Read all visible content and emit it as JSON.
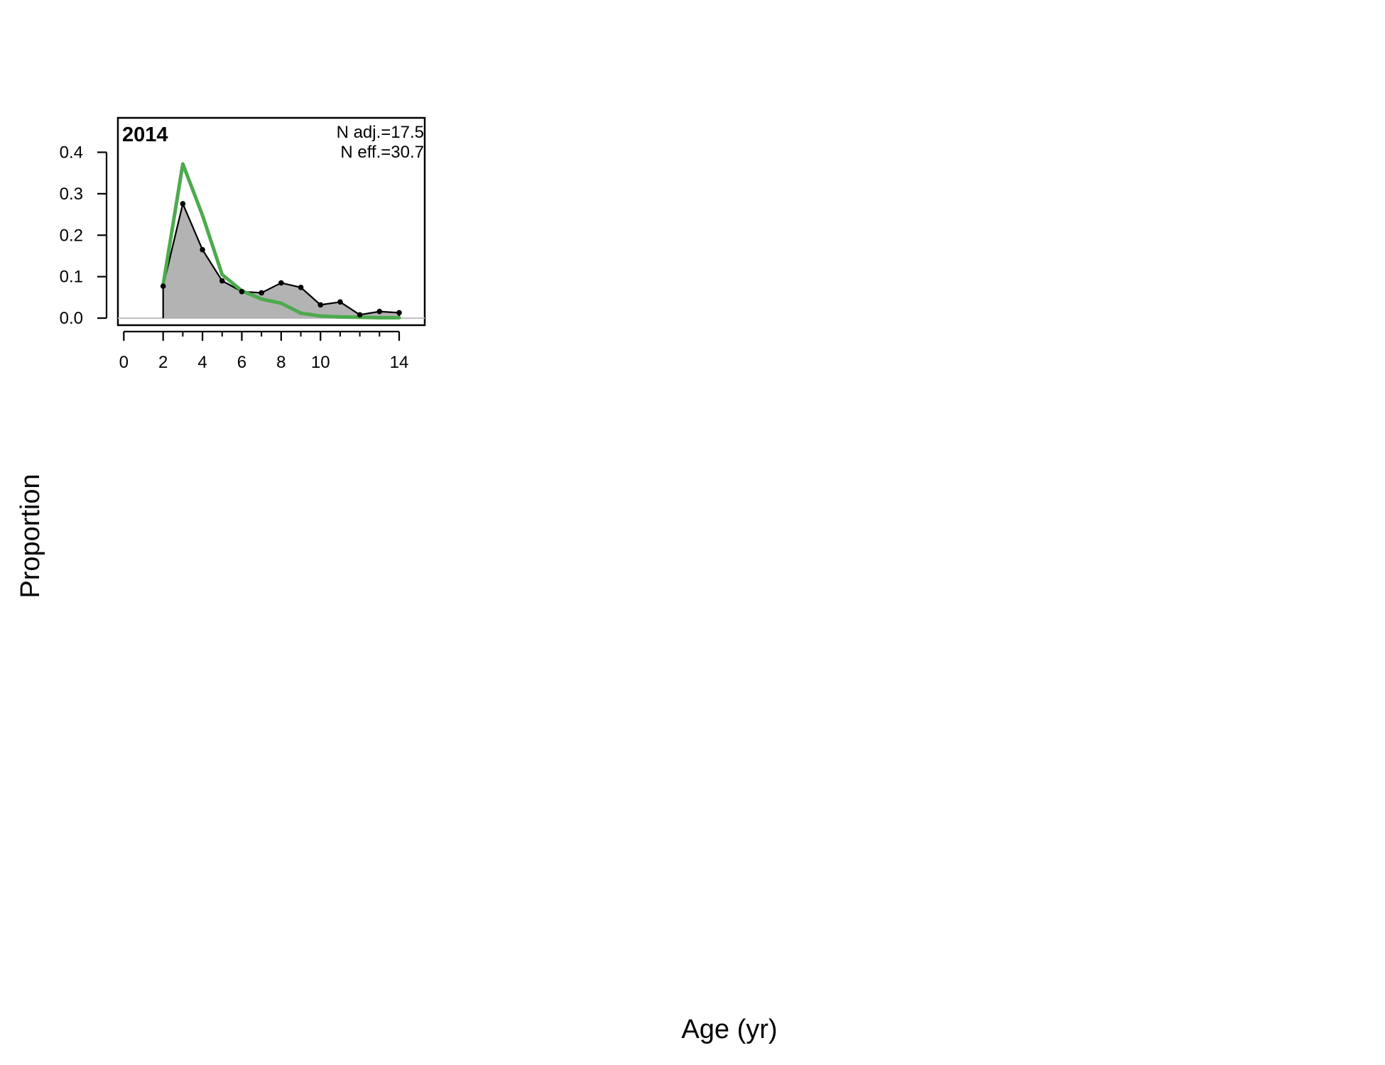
{
  "chart_data": {
    "type": "area",
    "title": "2014",
    "xlabel": "Age (yr)",
    "ylabel": "Proportion",
    "annotations": [
      "N adj.=17.5",
      "N eff.=30.7"
    ],
    "x_ticks": [
      0,
      2,
      4,
      6,
      8,
      10,
      14
    ],
    "y_ticks": [
      "0.0",
      "0.1",
      "0.2",
      "0.3",
      "0.4"
    ],
    "xlim": [
      -0.3,
      15.3
    ],
    "ylim": [
      -0.017,
      0.483
    ],
    "grid": false,
    "series": [
      {
        "role": "observed",
        "style": "shaded area with points",
        "color": "#000000",
        "fill": "#b3b3b3",
        "x": [
          2,
          3,
          4,
          5,
          6,
          7,
          8,
          9,
          10,
          11,
          12,
          13,
          14
        ],
        "values": [
          0.077,
          0.276,
          0.165,
          0.09,
          0.064,
          0.061,
          0.085,
          0.074,
          0.032,
          0.039,
          0.008,
          0.016,
          0.013
        ]
      },
      {
        "role": "expected",
        "style": "line",
        "color": "#4daa4d",
        "x": [
          2,
          3,
          4,
          5,
          6,
          7,
          8,
          9,
          10,
          11,
          12,
          13,
          14
        ],
        "values": [
          0.08,
          0.372,
          0.248,
          0.105,
          0.066,
          0.046,
          0.036,
          0.012,
          0.005,
          0.003,
          0.002,
          0.001,
          0.001
        ]
      }
    ]
  }
}
